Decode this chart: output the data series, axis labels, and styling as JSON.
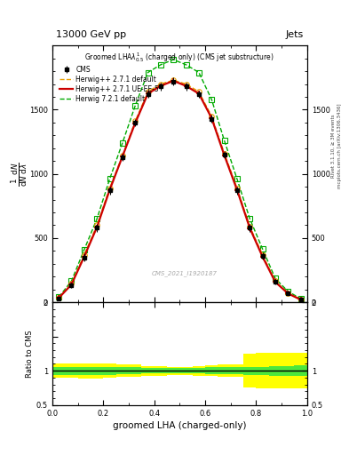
{
  "title_top": "13000 GeV pp",
  "title_right": "Jets",
  "plot_title": "Groomed LHA$\\lambda^{1}_{0.5}$ (charged only) (CMS jet substructure)",
  "xlabel": "groomed LHA (charged-only)",
  "ylabel_ratio": "Ratio to CMS",
  "watermark": "CMS_2021_I1920187",
  "right_label_top": "Rivet 3.1.10, ≥ 3M events",
  "right_label_bot": "mcplots.cern.ch [arXiv:1306.3436]",
  "x_data": [
    0.025,
    0.075,
    0.125,
    0.175,
    0.225,
    0.275,
    0.325,
    0.375,
    0.425,
    0.475,
    0.525,
    0.575,
    0.625,
    0.675,
    0.725,
    0.775,
    0.825,
    0.875,
    0.925,
    0.975
  ],
  "cms_y": [
    30,
    130,
    350,
    580,
    870,
    1130,
    1400,
    1620,
    1680,
    1720,
    1680,
    1620,
    1430,
    1150,
    870,
    580,
    360,
    160,
    70,
    20
  ],
  "cms_yerr": [
    8,
    20,
    30,
    30,
    30,
    30,
    30,
    30,
    30,
    30,
    30,
    30,
    30,
    30,
    30,
    30,
    25,
    20,
    15,
    8
  ],
  "herwig271_default_y": [
    35,
    145,
    370,
    600,
    890,
    1140,
    1410,
    1640,
    1700,
    1730,
    1700,
    1640,
    1450,
    1160,
    890,
    590,
    370,
    165,
    72,
    22
  ],
  "herwig271_ueee5_y": [
    33,
    138,
    355,
    585,
    875,
    1135,
    1395,
    1625,
    1685,
    1725,
    1685,
    1625,
    1435,
    1145,
    875,
    578,
    355,
    158,
    68,
    20
  ],
  "herwig721_default_y": [
    40,
    165,
    410,
    650,
    960,
    1240,
    1530,
    1790,
    1850,
    1890,
    1850,
    1790,
    1580,
    1260,
    960,
    650,
    415,
    185,
    85,
    27
  ],
  "ylim_main": [
    0,
    2000
  ],
  "ylim_ratio": [
    0.5,
    2.0
  ],
  "ratio_band_green_lo": [
    0.94,
    0.94,
    0.94,
    0.94,
    0.94,
    0.95,
    0.95,
    0.96,
    0.96,
    0.96,
    0.96,
    0.96,
    0.95,
    0.95,
    0.95,
    0.94,
    0.94,
    0.93,
    0.93,
    0.92
  ],
  "ratio_band_green_hi": [
    1.06,
    1.06,
    1.06,
    1.06,
    1.06,
    1.05,
    1.05,
    1.04,
    1.04,
    1.04,
    1.04,
    1.04,
    1.05,
    1.05,
    1.05,
    1.06,
    1.06,
    1.07,
    1.07,
    1.08
  ],
  "ratio_band_yellow_lo": [
    0.9,
    0.9,
    0.89,
    0.89,
    0.9,
    0.91,
    0.91,
    0.93,
    0.93,
    0.94,
    0.94,
    0.93,
    0.92,
    0.91,
    0.91,
    0.75,
    0.74,
    0.74,
    0.74,
    0.74
  ],
  "ratio_band_yellow_hi": [
    1.1,
    1.1,
    1.11,
    1.11,
    1.1,
    1.09,
    1.09,
    1.07,
    1.07,
    1.06,
    1.06,
    1.07,
    1.08,
    1.09,
    1.09,
    1.25,
    1.26,
    1.26,
    1.26,
    1.26
  ],
  "color_cms": "#000000",
  "color_herwig271_default": "#e8a000",
  "color_herwig271_ueee5": "#cc0000",
  "color_herwig721_default": "#00aa00",
  "bg_color": "#ffffff",
  "yticks_main": [
    0,
    500,
    1000,
    1500
  ],
  "ytick_labels_main": [
    "0",
    "500",
    "1000",
    "1500"
  ]
}
